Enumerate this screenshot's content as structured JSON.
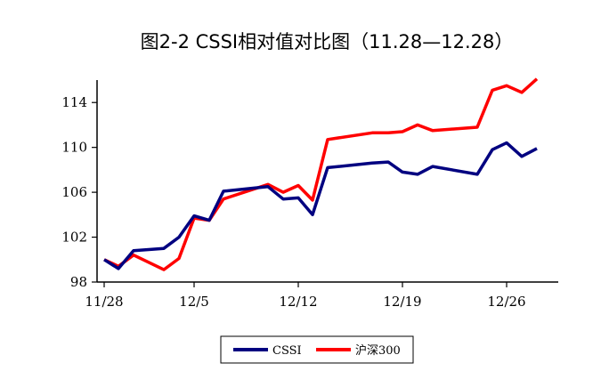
{
  "chart_data": {
    "type": "line",
    "title": "图2-2 CSSI相对值对比图（11.28—12.28）",
    "xlabel": "",
    "ylabel": "",
    "x_ticks": [
      "11/28",
      "12/5",
      "12/12",
      "12/19",
      "12/26"
    ],
    "y_ticks": [
      "98",
      "102",
      "106",
      "110",
      "114"
    ],
    "ylim": [
      98,
      116
    ],
    "grid": false,
    "legend": "bottom",
    "x": [
      "11/28",
      "11/29",
      "11/30",
      "12/3",
      "12/4",
      "12/5",
      "12/6",
      "12/7",
      "12/10",
      "12/11",
      "12/12",
      "12/13",
      "12/14",
      "12/17",
      "12/18",
      "12/19",
      "12/20",
      "12/21",
      "12/24",
      "12/25",
      "12/26",
      "12/27",
      "12/28"
    ],
    "series": [
      {
        "name": "CSSI",
        "color": "#000080",
        "values": [
          100.0,
          99.2,
          100.8,
          101.0,
          102.0,
          103.9,
          103.5,
          106.1,
          106.5,
          105.4,
          105.5,
          104.0,
          108.2,
          108.6,
          108.7,
          107.8,
          107.6,
          108.3,
          107.6,
          109.8,
          110.4,
          109.2,
          109.9
        ]
      },
      {
        "name": "沪深300",
        "color": "#ff0000",
        "values": [
          100.0,
          99.4,
          100.4,
          99.1,
          100.1,
          103.7,
          103.5,
          105.4,
          106.7,
          106.0,
          106.6,
          105.3,
          110.7,
          111.3,
          111.3,
          111.4,
          112.0,
          111.5,
          111.8,
          115.1,
          115.5,
          114.9,
          116.1
        ]
      }
    ]
  }
}
